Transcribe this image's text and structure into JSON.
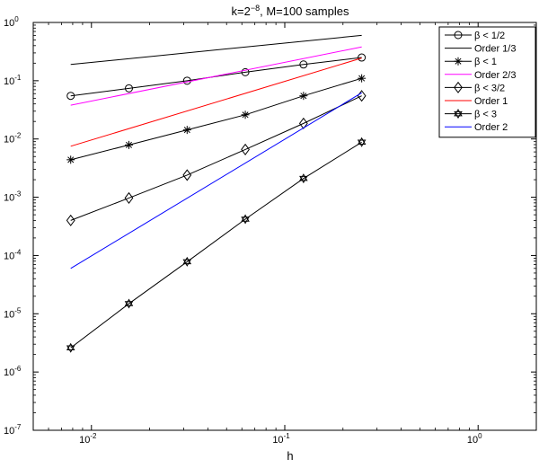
{
  "chart_data": {
    "type": "line",
    "title_main": "k=2",
    "title_exp": "−8",
    "title_rest": ", M=100 samples",
    "xlabel": "h",
    "ylabel": "",
    "xscale": "log",
    "yscale": "log",
    "xlim": [
      0.005,
      2
    ],
    "ylim": [
      1e-07,
      1
    ],
    "xticks": [
      {
        "value": 0.01,
        "base": "10",
        "exp": "-2"
      },
      {
        "value": 0.1,
        "base": "10",
        "exp": "-1"
      },
      {
        "value": 1,
        "base": "10",
        "exp": "0"
      }
    ],
    "yticks": [
      {
        "value": 1,
        "base": "10",
        "exp": "0"
      },
      {
        "value": 0.1,
        "base": "10",
        "exp": "-1"
      },
      {
        "value": 0.01,
        "base": "10",
        "exp": "-2"
      },
      {
        "value": 0.001,
        "base": "10",
        "exp": "-3"
      },
      {
        "value": 0.0001,
        "base": "10",
        "exp": "-4"
      },
      {
        "value": 1e-05,
        "base": "10",
        "exp": "-5"
      },
      {
        "value": 1e-06,
        "base": "10",
        "exp": "-6"
      },
      {
        "value": 1e-07,
        "base": "10",
        "exp": "-7"
      }
    ],
    "grid": false,
    "legend_position": "top-right",
    "x": [
      0.0078125,
      0.015625,
      0.03125,
      0.0625,
      0.125,
      0.25
    ],
    "series": [
      {
        "name": "β < 1/2",
        "color": "#000000",
        "marker": "circle",
        "values": [
          0.055,
          0.074,
          0.1,
          0.14,
          0.19,
          0.25
        ]
      },
      {
        "name": "Order 1/3",
        "color": "#000000",
        "marker": "none",
        "values": [
          0.19,
          null,
          null,
          null,
          null,
          0.6
        ]
      },
      {
        "name": "β < 1",
        "color": "#000000",
        "marker": "asterisk",
        "values": [
          0.0044,
          0.0079,
          0.0143,
          0.026,
          0.055,
          0.11
        ]
      },
      {
        "name": "Order 2/3",
        "color": "#ff00ff",
        "marker": "none",
        "values": [
          0.038,
          null,
          null,
          null,
          null,
          0.38
        ]
      },
      {
        "name": "β < 3/2",
        "color": "#000000",
        "marker": "diamond",
        "values": [
          0.0004,
          0.00097,
          0.0024,
          0.0066,
          0.0185,
          0.055
        ]
      },
      {
        "name": "Order 1",
        "color": "#ff0000",
        "marker": "none",
        "values": [
          0.0075,
          null,
          null,
          null,
          null,
          0.245
        ]
      },
      {
        "name": "β < 3",
        "color": "#000000",
        "marker": "star",
        "values": [
          2.6e-06,
          1.49e-05,
          7.8e-05,
          0.00042,
          0.0021,
          0.0088
        ]
      },
      {
        "name": "Order 2",
        "color": "#0000ff",
        "marker": "none",
        "values": [
          6e-05,
          null,
          null,
          null,
          null,
          0.062
        ]
      }
    ]
  }
}
